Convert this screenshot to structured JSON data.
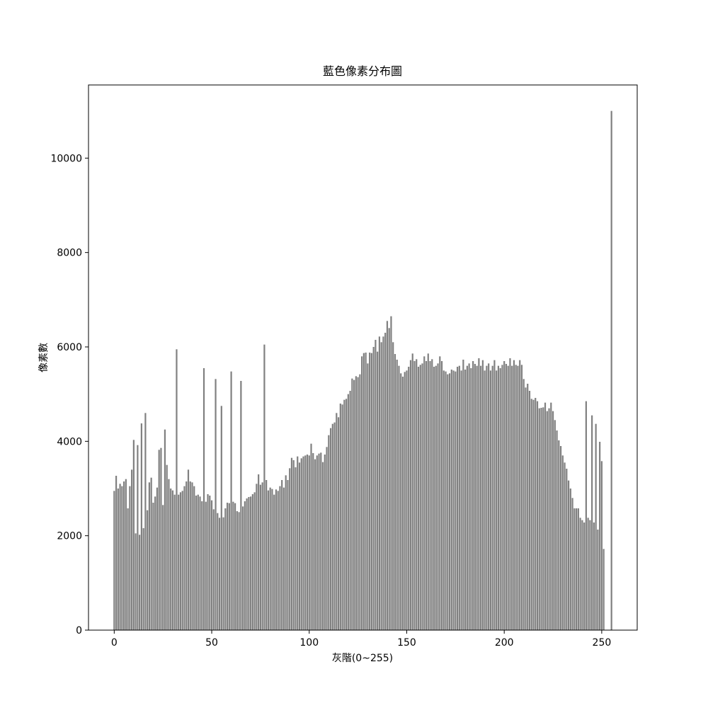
{
  "chart_data": {
    "type": "bar",
    "title": "藍色像素分布圖",
    "x_label": "灰階(0~255)",
    "y_label": "像素數",
    "color": "#808080",
    "x": [
      0,
      1,
      2,
      3,
      4,
      5,
      6,
      7,
      8,
      9,
      10,
      11,
      12,
      13,
      14,
      15,
      16,
      17,
      18,
      19,
      20,
      21,
      22,
      23,
      24,
      25,
      26,
      27,
      28,
      29,
      30,
      31,
      32,
      33,
      34,
      35,
      36,
      37,
      38,
      39,
      40,
      41,
      42,
      43,
      44,
      45,
      46,
      47,
      48,
      49,
      50,
      51,
      52,
      53,
      54,
      55,
      56,
      57,
      58,
      59,
      60,
      61,
      62,
      63,
      64,
      65,
      66,
      67,
      68,
      69,
      70,
      71,
      72,
      73,
      74,
      75,
      76,
      77,
      78,
      79,
      80,
      81,
      82,
      83,
      84,
      85,
      86,
      87,
      88,
      89,
      90,
      91,
      92,
      93,
      94,
      95,
      96,
      97,
      98,
      99,
      100,
      101,
      102,
      103,
      104,
      105,
      106,
      107,
      108,
      109,
      110,
      111,
      112,
      113,
      114,
      115,
      116,
      117,
      118,
      119,
      120,
      121,
      122,
      123,
      124,
      125,
      126,
      127,
      128,
      129,
      130,
      131,
      132,
      133,
      134,
      135,
      136,
      137,
      138,
      139,
      140,
      141,
      142,
      143,
      144,
      145,
      146,
      147,
      148,
      149,
      150,
      151,
      152,
      153,
      154,
      155,
      156,
      157,
      158,
      159,
      160,
      161,
      162,
      163,
      164,
      165,
      166,
      167,
      168,
      169,
      170,
      171,
      172,
      173,
      174,
      175,
      176,
      177,
      178,
      179,
      180,
      181,
      182,
      183,
      184,
      185,
      186,
      187,
      188,
      189,
      190,
      191,
      192,
      193,
      194,
      195,
      196,
      197,
      198,
      199,
      200,
      201,
      202,
      203,
      204,
      205,
      206,
      207,
      208,
      209,
      210,
      211,
      212,
      213,
      214,
      215,
      216,
      217,
      218,
      219,
      220,
      221,
      222,
      223,
      224,
      225,
      226,
      227,
      228,
      229,
      230,
      231,
      232,
      233,
      234,
      235,
      236,
      237,
      238,
      239,
      240,
      241,
      242,
      243,
      244,
      245,
      246,
      247,
      248,
      249,
      250,
      251,
      252,
      253,
      254,
      255
    ],
    "values": [
      2950,
      3270,
      3000,
      3100,
      3050,
      3150,
      3200,
      2580,
      3050,
      3400,
      4030,
      2050,
      3920,
      2020,
      4380,
      2160,
      4600,
      2540,
      3130,
      3230,
      2700,
      2830,
      3020,
      3820,
      3860,
      2650,
      4250,
      3500,
      3200,
      3000,
      2960,
      2870,
      5950,
      2870,
      2920,
      2950,
      3050,
      3150,
      3400,
      3150,
      3130,
      3050,
      2850,
      2870,
      2830,
      2730,
      5550,
      2720,
      2880,
      2850,
      2750,
      2560,
      5320,
      2480,
      2380,
      4750,
      2390,
      2580,
      2700,
      2690,
      5480,
      2720,
      2690,
      2520,
      2500,
      5280,
      2620,
      2730,
      2790,
      2820,
      2830,
      2880,
      2920,
      3100,
      3300,
      3080,
      3130,
      6050,
      3180,
      2960,
      3020,
      2990,
      2870,
      2980,
      2950,
      3050,
      3180,
      3020,
      3280,
      3180,
      3430,
      3650,
      3600,
      3450,
      3680,
      3550,
      3640,
      3680,
      3700,
      3720,
      3700,
      3950,
      3750,
      3620,
      3700,
      3740,
      3760,
      3560,
      3720,
      3880,
      4130,
      4280,
      4370,
      4400,
      4600,
      4510,
      4800,
      4780,
      4880,
      4900,
      5000,
      5070,
      5330,
      5300,
      5380,
      5360,
      5420,
      5800,
      5870,
      5880,
      5650,
      5880,
      5870,
      6000,
      6150,
      5900,
      6220,
      6100,
      6220,
      6300,
      6550,
      6400,
      6650,
      6100,
      5850,
      5730,
      5600,
      5440,
      5370,
      5470,
      5500,
      5580,
      5720,
      5860,
      5700,
      5740,
      5580,
      5620,
      5650,
      5800,
      5700,
      5860,
      5700,
      5740,
      5580,
      5600,
      5650,
      5800,
      5700,
      5500,
      5480,
      5420,
      5440,
      5520,
      5500,
      5480,
      5580,
      5600,
      5500,
      5730,
      5520,
      5600,
      5650,
      5550,
      5700,
      5640,
      5600,
      5760,
      5600,
      5720,
      5500,
      5600,
      5650,
      5500,
      5600,
      5720,
      5500,
      5600,
      5550,
      5620,
      5700,
      5640,
      5600,
      5760,
      5600,
      5720,
      5620,
      5600,
      5720,
      5620,
      5320,
      5140,
      5220,
      5070,
      4900,
      4880,
      4920,
      4850,
      4700,
      4710,
      4720,
      4820,
      4640,
      4700,
      4820,
      4640,
      4450,
      4230,
      4020,
      3900,
      3700,
      3550,
      3420,
      3170,
      3000,
      2800,
      2580,
      2580,
      2580,
      2380,
      2330,
      2280,
      4850,
      2380,
      2330,
      4550,
      2280,
      4370,
      2130,
      3990,
      3580,
      1720,
      0,
      0,
      0,
      11000
    ],
    "xlim": [
      -13.19,
      268.19
    ],
    "xticks": [
      0,
      50,
      100,
      150,
      200,
      250
    ],
    "ylim": [
      0,
      11550
    ],
    "yticks": [
      0,
      2000,
      4000,
      6000,
      8000,
      10000
    ]
  }
}
